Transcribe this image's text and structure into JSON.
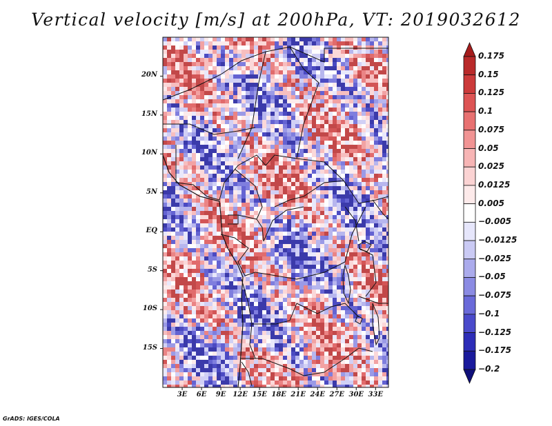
{
  "title": "Vertical velocity [m/s] at 200hPa, VT: 2019032612",
  "credit": "GrADS: IGES/COLA",
  "map": {
    "lon_range": [
      0,
      35
    ],
    "lat_range": [
      -20,
      25
    ],
    "lat_ticks": [
      {
        "value": 20,
        "label": "20N"
      },
      {
        "value": 15,
        "label": "15N"
      },
      {
        "value": 10,
        "label": "10N"
      },
      {
        "value": 5,
        "label": "5N"
      },
      {
        "value": 0,
        "label": "EQ"
      },
      {
        "value": -5,
        "label": "5S"
      },
      {
        "value": -10,
        "label": "10S"
      },
      {
        "value": -15,
        "label": "15S"
      }
    ],
    "lon_ticks": [
      {
        "value": 3,
        "label": "3E"
      },
      {
        "value": 6,
        "label": "6E"
      },
      {
        "value": 9,
        "label": "9E"
      },
      {
        "value": 12,
        "label": "12E"
      },
      {
        "value": 15,
        "label": "15E"
      },
      {
        "value": 18,
        "label": "18E"
      },
      {
        "value": 21,
        "label": "21E"
      },
      {
        "value": 24,
        "label": "24E"
      },
      {
        "value": 27,
        "label": "27E"
      },
      {
        "value": 30,
        "label": "30E"
      },
      {
        "value": 33,
        "label": "33E"
      }
    ]
  },
  "colorbar": {
    "labels": [
      "0.175",
      "0.15",
      "0.125",
      "0.1",
      "0.075",
      "0.05",
      "0.025",
      "0.0125",
      "0.005",
      "−0.005",
      "−0.0125",
      "−0.025",
      "−0.05",
      "−0.075",
      "−0.1",
      "−0.125",
      "−0.175",
      "−0.2"
    ],
    "colors": [
      "#a51c1c",
      "#b92a2a",
      "#cc3a3a",
      "#dd5454",
      "#e87171",
      "#f19494",
      "#f7b5b5",
      "#fbd3d3",
      "#fdeaea",
      "#ffffff",
      "#e6e6fb",
      "#cacaf4",
      "#ababec",
      "#8b8be3",
      "#6a6ad9",
      "#4a4acb",
      "#2d2db8",
      "#1a1a9c",
      "#0f0f7a"
    ]
  }
}
